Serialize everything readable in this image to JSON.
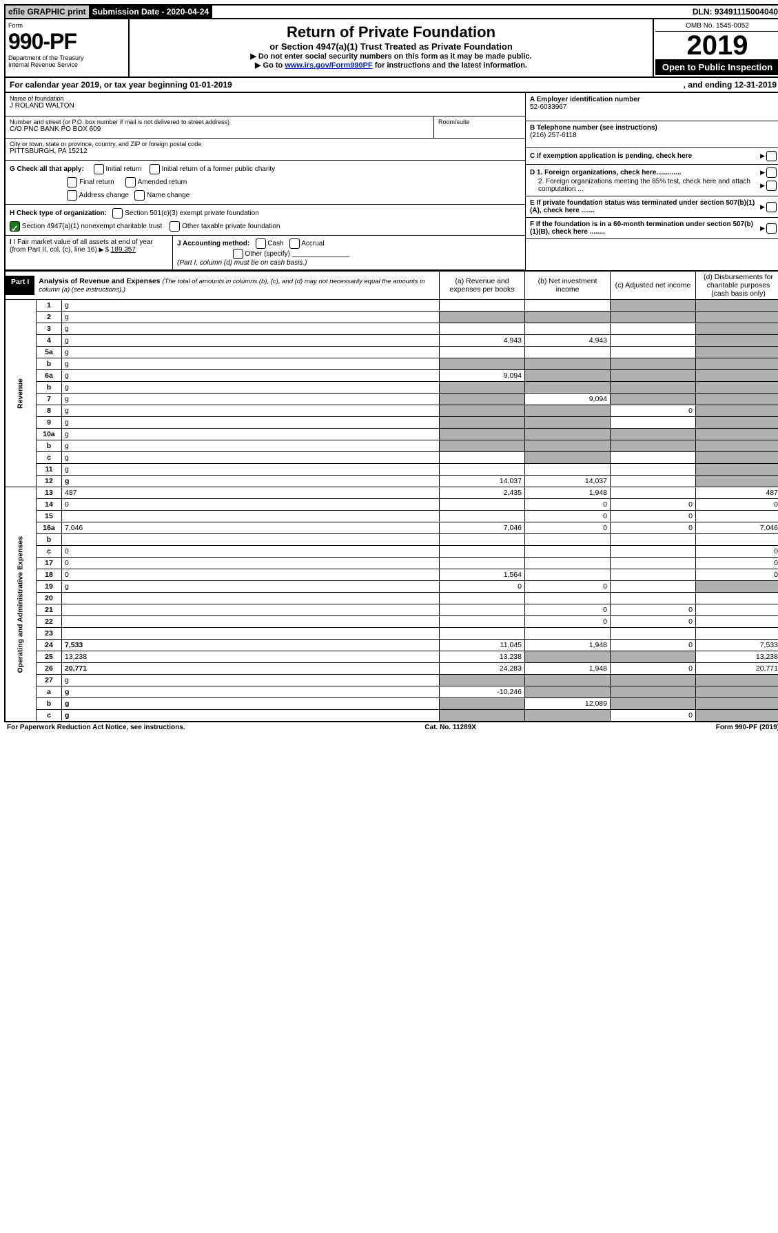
{
  "topbar": {
    "efile": "efile GRAPHIC print",
    "submission": "Submission Date - 2020-04-24",
    "dln": "DLN: 93491115004040"
  },
  "header": {
    "form_word": "Form",
    "form_num": "990-PF",
    "dept": "Department of the Treasury\nInternal Revenue Service",
    "title": "Return of Private Foundation",
    "subtitle": "or Section 4947(a)(1) Trust Treated as Private Foundation",
    "inst1": "▶ Do not enter social security numbers on this form as it may be made public.",
    "inst2_pre": "▶ Go to ",
    "inst2_link": "www.irs.gov/Form990PF",
    "inst2_post": " for instructions and the latest information.",
    "omb": "OMB No. 1545-0052",
    "year": "2019",
    "otp": "Open to Public Inspection"
  },
  "calendar": {
    "text1": "For calendar year 2019, or tax year beginning 01-01-2019",
    "text2": ", and ending 12-31-2019"
  },
  "left": {
    "name_lbl": "Name of foundation",
    "name": "J ROLAND WALTON",
    "addr_lbl": "Number and street (or P.O. box number if mail is not delivered to street address)",
    "addr": "C/O PNC BANK PO BOX 609",
    "room_lbl": "Room/suite",
    "city_lbl": "City or town, state or province, country, and ZIP or foreign postal code",
    "city": "PITTSBURGH, PA  15212",
    "g_lbl": "G Check all that apply:",
    "g_opts": [
      "Initial return",
      "Initial return of a former public charity",
      "Final return",
      "Amended return",
      "Address change",
      "Name change"
    ],
    "h_lbl": "H Check type of organization:",
    "h1": "Section 501(c)(3) exempt private foundation",
    "h2": "Section 4947(a)(1) nonexempt charitable trust",
    "h3": "Other taxable private foundation",
    "i_lbl": "I Fair market value of all assets at end of year (from Part II, col. (c), line 16)",
    "i_val": "189,357",
    "j_lbl": "J Accounting method:",
    "j_opts": [
      "Cash",
      "Accrual"
    ],
    "j_other": "Other (specify)",
    "j_note": "(Part I, column (d) must be on cash basis.)"
  },
  "right": {
    "a_lbl": "A Employer identification number",
    "a_val": "52-6033967",
    "b_lbl": "B Telephone number (see instructions)",
    "b_val": "(216) 257-6118",
    "c_lbl": "C If exemption application is pending, check here",
    "d1": "D 1. Foreign organizations, check here.............",
    "d2": "2. Foreign organizations meeting the 85% test, check here and attach computation ...",
    "e_lbl": "E If private foundation status was terminated under section 507(b)(1)(A), check here .......",
    "f_lbl": "F If the foundation is in a 60-month termination under section 507(b)(1)(B), check here ........"
  },
  "part1": {
    "label": "Part I",
    "title": "Analysis of Revenue and Expenses",
    "note": "(The total of amounts in columns (b), (c), and (d) may not necessarily equal the amounts in column (a) (see instructions).)",
    "cols": {
      "a": "(a)    Revenue and expenses per books",
      "b": "(b)   Net investment income",
      "c": "(c)   Adjusted net income",
      "d": "(d)   Disbursements for charitable purposes (cash basis only)"
    },
    "sections": [
      "Revenue",
      "Operating and Administrative Expenses"
    ],
    "rows": [
      {
        "n": "1",
        "d": "g",
        "a": "",
        "b": "",
        "c": "g"
      },
      {
        "n": "2",
        "d": "g",
        "a": "g",
        "b": "g",
        "c": "g",
        "nowrap": false
      },
      {
        "n": "3",
        "d": "g",
        "a": "",
        "b": "",
        "c": ""
      },
      {
        "n": "4",
        "d": "g",
        "a": "4,943",
        "b": "4,943",
        "c": ""
      },
      {
        "n": "5a",
        "d": "g",
        "a": "",
        "b": "",
        "c": ""
      },
      {
        "n": "b",
        "d": "g",
        "a": "g",
        "b": "g",
        "c": "g"
      },
      {
        "n": "6a",
        "d": "g",
        "a": "9,094",
        "b": "g",
        "c": "g"
      },
      {
        "n": "b",
        "d": "g",
        "a": "g",
        "b": "g",
        "c": "g"
      },
      {
        "n": "7",
        "d": "g",
        "a": "g",
        "b": "9,094",
        "c": "g"
      },
      {
        "n": "8",
        "d": "g",
        "a": "g",
        "b": "g",
        "c": "0"
      },
      {
        "n": "9",
        "d": "g",
        "a": "g",
        "b": "g",
        "c": ""
      },
      {
        "n": "10a",
        "d": "g",
        "a": "g",
        "b": "g",
        "c": "g"
      },
      {
        "n": "b",
        "d": "g",
        "a": "g",
        "b": "g",
        "c": "g"
      },
      {
        "n": "c",
        "d": "g",
        "a": "",
        "b": "g",
        "c": ""
      },
      {
        "n": "11",
        "d": "g",
        "a": "",
        "b": "",
        "c": ""
      },
      {
        "n": "12",
        "d": "g",
        "a": "14,037",
        "b": "14,037",
        "c": "",
        "bold": true
      },
      {
        "n": "13",
        "d": "487",
        "a": "2,435",
        "b": "1,948",
        "c": ""
      },
      {
        "n": "14",
        "d": "0",
        "a": "",
        "b": "0",
        "c": "0"
      },
      {
        "n": "15",
        "d": "",
        "a": "",
        "b": "0",
        "c": "0"
      },
      {
        "n": "16a",
        "d": "7,046",
        "a": "7,046",
        "b": "0",
        "c": "0"
      },
      {
        "n": "b",
        "d": "",
        "a": "",
        "b": "",
        "c": ""
      },
      {
        "n": "c",
        "d": "0",
        "a": "",
        "b": "",
        "c": ""
      },
      {
        "n": "17",
        "d": "0",
        "a": "",
        "b": "",
        "c": ""
      },
      {
        "n": "18",
        "d": "0",
        "a": "1,564",
        "b": "",
        "c": ""
      },
      {
        "n": "19",
        "d": "g",
        "a": "0",
        "b": "0",
        "c": ""
      },
      {
        "n": "20",
        "d": "",
        "a": "",
        "b": "",
        "c": ""
      },
      {
        "n": "21",
        "d": "",
        "a": "",
        "b": "0",
        "c": "0"
      },
      {
        "n": "22",
        "d": "",
        "a": "",
        "b": "0",
        "c": "0"
      },
      {
        "n": "23",
        "d": "",
        "a": "",
        "b": "",
        "c": ""
      },
      {
        "n": "24",
        "d": "7,533",
        "a": "11,045",
        "b": "1,948",
        "c": "0",
        "bold": true
      },
      {
        "n": "25",
        "d": "13,238",
        "a": "13,238",
        "b": "g",
        "c": "g"
      },
      {
        "n": "26",
        "d": "20,771",
        "a": "24,283",
        "b": "1,948",
        "c": "0",
        "bold": true
      },
      {
        "n": "27",
        "d": "g",
        "a": "g",
        "b": "g",
        "c": "g"
      },
      {
        "n": "a",
        "d": "g",
        "a": "-10,246",
        "b": "g",
        "c": "g",
        "bold": true
      },
      {
        "n": "b",
        "d": "g",
        "a": "g",
        "b": "12,089",
        "c": "g",
        "bold": true
      },
      {
        "n": "c",
        "d": "g",
        "a": "g",
        "b": "g",
        "c": "0",
        "bold": true
      }
    ]
  },
  "footer": {
    "left": "For Paperwork Reduction Act Notice, see instructions.",
    "mid": "Cat. No. 11289X",
    "right": "Form 990-PF (2019)"
  }
}
